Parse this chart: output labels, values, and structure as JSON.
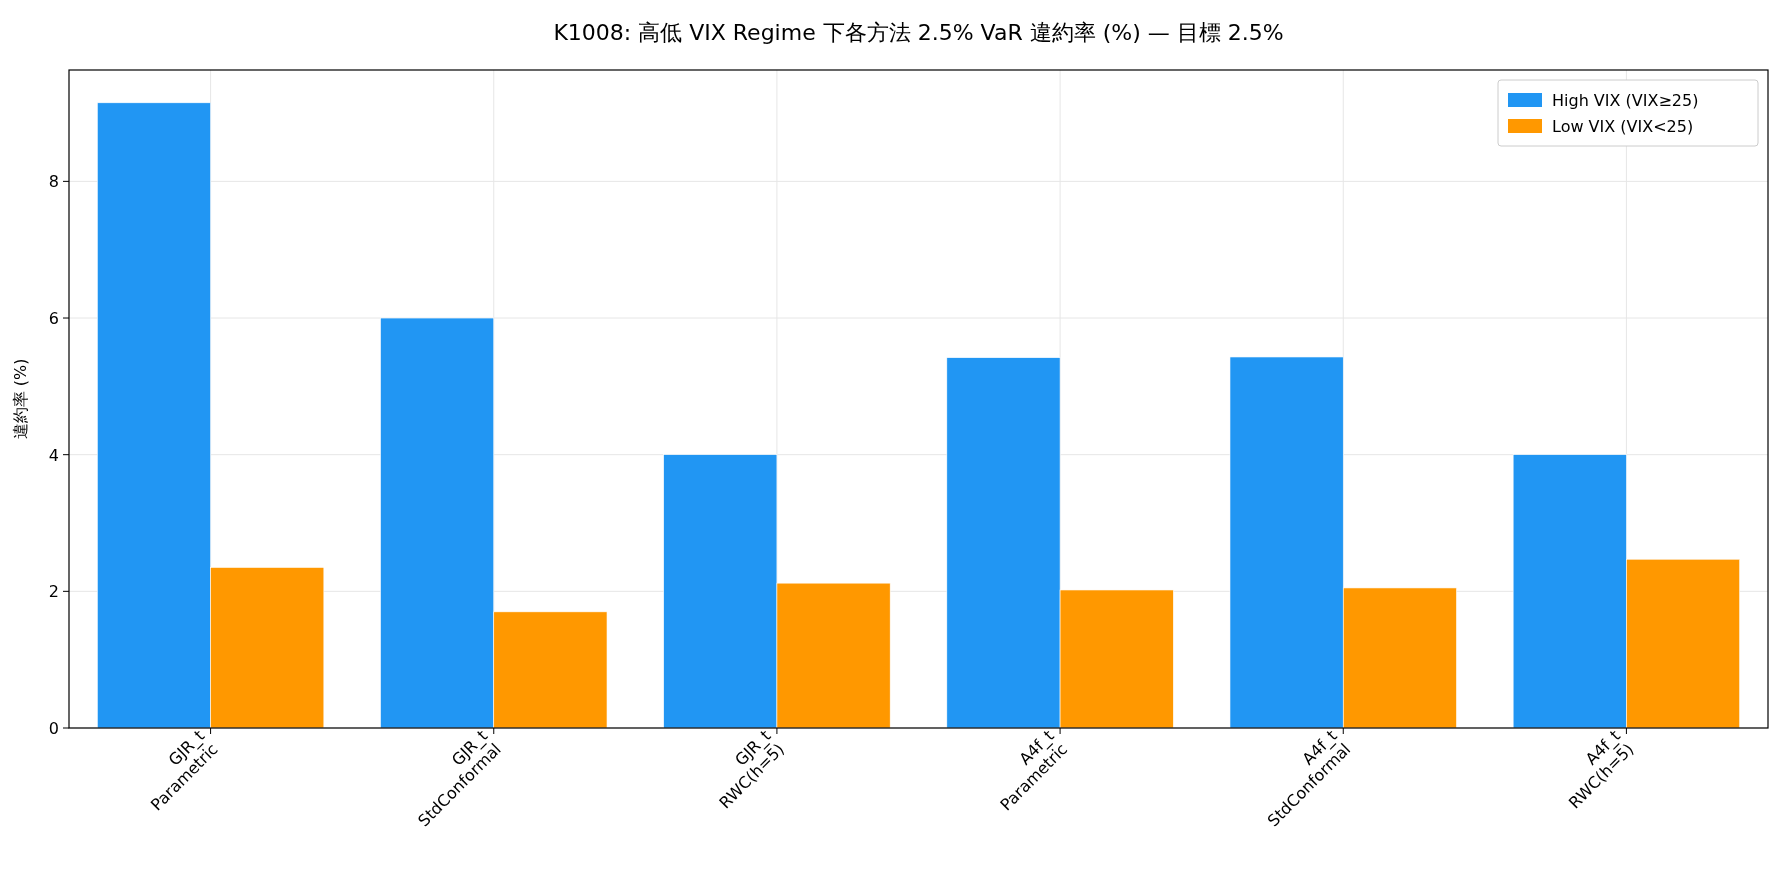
{
  "chart_data": {
    "type": "bar",
    "title": "K1008: 高低 VIX Regime 下各方法 2.5% VaR 違約率 (%) — 目標 2.5%",
    "ylabel": "違約率 (%)",
    "categories": [
      "GJR_t\nParametric",
      "GJR_t\nStdConformal",
      "GJR_t\nRWC(h=5)",
      "A4f_t\nParametric",
      "A4f_t\nStdConformal",
      "A4f_t\nRWC(h=5)"
    ],
    "series": [
      {
        "name": "High VIX (VIX≥25)",
        "color": "#2196f3",
        "values": [
          9.15,
          6.0,
          4.0,
          5.42,
          5.43,
          4.0
        ]
      },
      {
        "name": "Low VIX (VIX<25)",
        "color": "#ff9800",
        "values": [
          2.35,
          1.7,
          2.12,
          2.02,
          2.05,
          2.47
        ]
      }
    ],
    "ylim": [
      0,
      9.63
    ],
    "yticks": [
      0,
      2,
      4,
      6,
      8
    ],
    "grid": true,
    "legend": "top right"
  }
}
